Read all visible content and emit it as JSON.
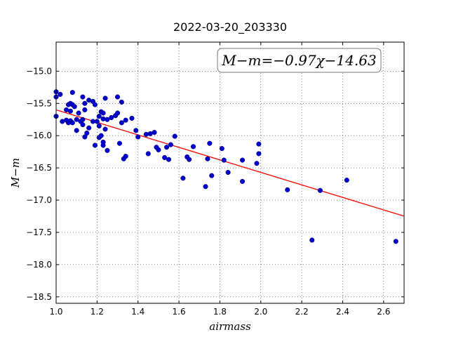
{
  "chart_data": {
    "type": "scatter",
    "title": "2022-03-20_203330",
    "xlabel": "airmass",
    "ylabel": "M−m",
    "xlim": [
      1.0,
      2.7
    ],
    "ylim": [
      -18.6,
      -14.55
    ],
    "x_ticks": [
      1.0,
      1.2,
      1.4,
      1.6,
      1.8,
      2.0,
      2.2,
      2.4,
      2.6
    ],
    "x_tick_labels": [
      "1.0",
      "1.2",
      "1.4",
      "1.6",
      "1.8",
      "2.0",
      "2.2",
      "2.4",
      "2.6"
    ],
    "y_ticks": [
      -15.0,
      -15.5,
      -16.0,
      -16.5,
      -17.0,
      -17.5,
      -18.0,
      -18.5
    ],
    "y_tick_labels": [
      "−15.0",
      "−15.5",
      "−16.0",
      "−16.5",
      "−17.0",
      "−17.5",
      "−18.0",
      "−18.5"
    ],
    "grid": true,
    "annotation": "M−m=−0.97χ−14.63",
    "fit": {
      "slope": -0.97,
      "intercept": -14.63,
      "color": "#ff0000"
    },
    "point_color": "#0000cc",
    "points": [
      [
        1.0,
        -15.32
      ],
      [
        1.0,
        -15.4
      ],
      [
        1.0,
        -15.7
      ],
      [
        1.02,
        -15.36
      ],
      [
        1.03,
        -15.78
      ],
      [
        1.05,
        -15.76
      ],
      [
        1.05,
        -15.6
      ],
      [
        1.06,
        -15.52
      ],
      [
        1.06,
        -15.8
      ],
      [
        1.07,
        -15.77
      ],
      [
        1.07,
        -15.5
      ],
      [
        1.07,
        -15.62
      ],
      [
        1.08,
        -15.33
      ],
      [
        1.08,
        -15.8
      ],
      [
        1.08,
        -15.52
      ],
      [
        1.09,
        -15.55
      ],
      [
        1.1,
        -15.92
      ],
      [
        1.1,
        -15.75
      ],
      [
        1.11,
        -15.65
      ],
      [
        1.12,
        -15.78
      ],
      [
        1.13,
        -15.4
      ],
      [
        1.13,
        -15.83
      ],
      [
        1.13,
        -15.75
      ],
      [
        1.14,
        -15.5
      ],
      [
        1.14,
        -15.6
      ],
      [
        1.14,
        -16.02
      ],
      [
        1.15,
        -15.96
      ],
      [
        1.16,
        -15.45
      ],
      [
        1.16,
        -15.88
      ],
      [
        1.18,
        -15.47
      ],
      [
        1.18,
        -15.78
      ],
      [
        1.19,
        -15.52
      ],
      [
        1.19,
        -16.15
      ],
      [
        1.2,
        -15.78
      ],
      [
        1.21,
        -16.03
      ],
      [
        1.21,
        -15.85
      ],
      [
        1.21,
        -15.7
      ],
      [
        1.22,
        -16.0
      ],
      [
        1.22,
        -15.63
      ],
      [
        1.23,
        -16.1
      ],
      [
        1.23,
        -15.65
      ],
      [
        1.23,
        -15.74
      ],
      [
        1.23,
        -16.15
      ],
      [
        1.24,
        -15.9
      ],
      [
        1.24,
        -15.42
      ],
      [
        1.25,
        -16.23
      ],
      [
        1.25,
        -15.75
      ],
      [
        1.27,
        -15.72
      ],
      [
        1.29,
        -15.69
      ],
      [
        1.3,
        -15.4
      ],
      [
        1.3,
        -15.65
      ],
      [
        1.31,
        -16.12
      ],
      [
        1.32,
        -15.48
      ],
      [
        1.32,
        -15.8
      ],
      [
        1.33,
        -16.36
      ],
      [
        1.34,
        -15.76
      ],
      [
        1.34,
        -16.32
      ],
      [
        1.37,
        -15.73
      ],
      [
        1.39,
        -15.92
      ],
      [
        1.4,
        -16.02
      ],
      [
        1.44,
        -15.98
      ],
      [
        1.45,
        -16.28
      ],
      [
        1.46,
        -15.97
      ],
      [
        1.48,
        -15.95
      ],
      [
        1.49,
        -16.18
      ],
      [
        1.5,
        -16.22
      ],
      [
        1.53,
        -16.34
      ],
      [
        1.54,
        -16.18
      ],
      [
        1.55,
        -16.37
      ],
      [
        1.56,
        -16.14
      ],
      [
        1.58,
        -16.01
      ],
      [
        1.62,
        -16.66
      ],
      [
        1.64,
        -16.33
      ],
      [
        1.65,
        -16.37
      ],
      [
        1.67,
        -16.17
      ],
      [
        1.73,
        -16.79
      ],
      [
        1.74,
        -16.36
      ],
      [
        1.75,
        -16.12
      ],
      [
        1.76,
        -16.62
      ],
      [
        1.81,
        -16.2
      ],
      [
        1.82,
        -16.38
      ],
      [
        1.84,
        -16.57
      ],
      [
        1.91,
        -16.71
      ],
      [
        1.91,
        -16.38
      ],
      [
        1.98,
        -16.43
      ],
      [
        1.99,
        -16.13
      ],
      [
        1.99,
        -16.28
      ],
      [
        2.13,
        -16.84
      ],
      [
        2.25,
        -17.62
      ],
      [
        2.29,
        -16.85
      ],
      [
        2.42,
        -16.69
      ],
      [
        2.66,
        -17.64
      ]
    ]
  }
}
